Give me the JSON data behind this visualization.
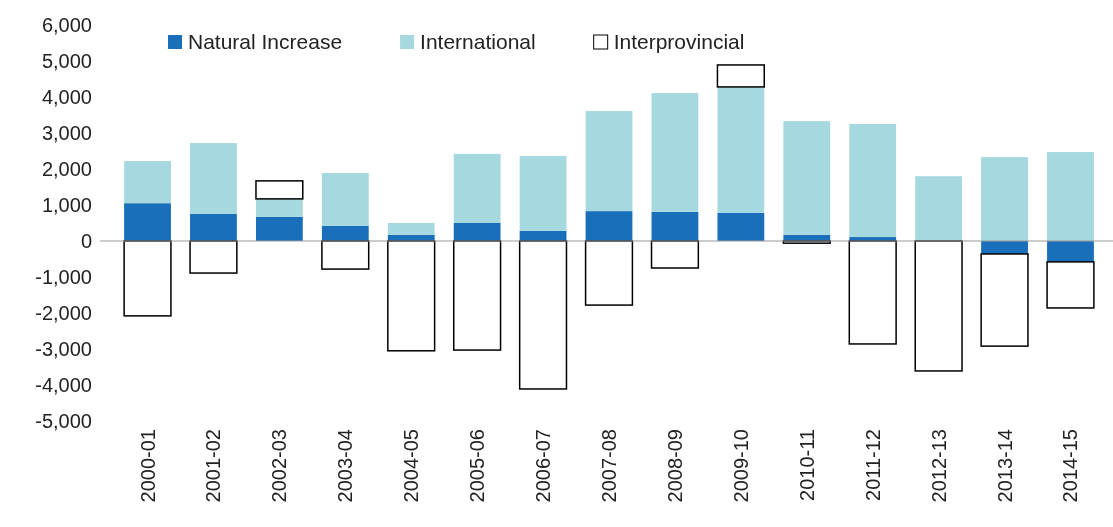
{
  "chart_data": {
    "type": "bar",
    "stacked": true,
    "legend": "top",
    "categories": [
      "2000-01",
      "2001-02",
      "2002-03",
      "2003-04",
      "2004-05",
      "2005-06",
      "2006-07",
      "2007-08",
      "2008-09",
      "2009-10",
      "2010-11",
      "2011-12",
      "2012-13",
      "2013-14",
      "2014-15"
    ],
    "series": [
      {
        "name": "Natural Increase",
        "color": "#1a6fba",
        "values": [
          1050,
          750,
          670,
          420,
          170,
          500,
          280,
          830,
          810,
          780,
          170,
          110,
          null,
          -360,
          -580
        ]
      },
      {
        "name": "International",
        "color": "#a6d8e0",
        "values": [
          1170,
          1970,
          500,
          1470,
          330,
          1920,
          2080,
          2780,
          3300,
          3500,
          3160,
          3140,
          1800,
          2330,
          2470
        ]
      },
      {
        "name": "Interprovincial",
        "color": "#ffffff",
        "values": [
          -2080,
          -890,
          500,
          -780,
          -3050,
          -3030,
          -4110,
          -1780,
          -750,
          610,
          -60,
          -2860,
          -3610,
          -2560,
          -1280
        ]
      }
    ],
    "ylim": [
      -5000,
      6000
    ],
    "yticks": [
      {
        "value": -5000,
        "label": "-5,000"
      },
      {
        "value": -4000,
        "label": "-4,000"
      },
      {
        "value": -3000,
        "label": "-3,000"
      },
      {
        "value": -2000,
        "label": "-2,000"
      },
      {
        "value": -1000,
        "label": "-1,000"
      },
      {
        "value": 0,
        "label": "0"
      },
      {
        "value": 1000,
        "label": "1,000"
      },
      {
        "value": 2000,
        "label": "2,000"
      },
      {
        "value": 3000,
        "label": "3,000"
      },
      {
        "value": 4000,
        "label": "4,000"
      },
      {
        "value": 5000,
        "label": "5,000"
      },
      {
        "value": 6000,
        "label": "6,000"
      }
    ]
  }
}
